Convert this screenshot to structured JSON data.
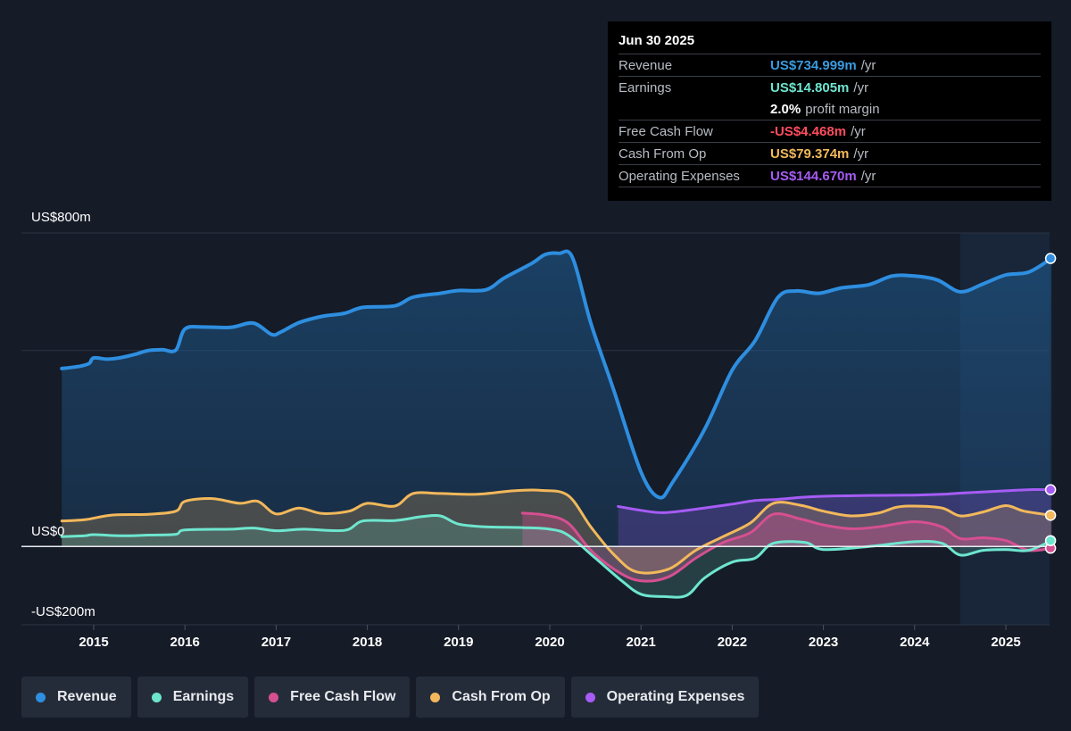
{
  "tooltip": {
    "date": "Jun 30 2025",
    "rows": [
      {
        "label": "Revenue",
        "value": "US$734.999m",
        "unit": "/yr",
        "color": "#3a9be0"
      },
      {
        "label": "Earnings",
        "value": "US$14.805m",
        "unit": "/yr",
        "color": "#6ee6cf"
      },
      {
        "label": "",
        "value": "2.0%",
        "unit": "profit margin",
        "color": "#ffffff"
      },
      {
        "label": "Free Cash Flow",
        "value": "-US$4.468m",
        "unit": "/yr",
        "color": "#ff4d5e"
      },
      {
        "label": "Cash From Op",
        "value": "US$79.374m",
        "unit": "/yr",
        "color": "#f2b85b"
      },
      {
        "label": "Operating Expenses",
        "value": "US$144.670m",
        "unit": "/yr",
        "color": "#a65cf5"
      }
    ]
  },
  "legend": [
    {
      "label": "Revenue",
      "color": "#2e8ee0"
    },
    {
      "label": "Earnings",
      "color": "#6ee6cf"
    },
    {
      "label": "Free Cash Flow",
      "color": "#d64f91"
    },
    {
      "label": "Cash From Op",
      "color": "#f2b85b"
    },
    {
      "label": "Operating Expenses",
      "color": "#a65cf5"
    }
  ],
  "chart_data": {
    "type": "line",
    "ylim": [
      -200,
      800
    ],
    "y_tick_labels": [
      {
        "label": "US$800m",
        "value": 800
      },
      {
        "label": "US$0",
        "value": 0
      },
      {
        "label": "-US$200m",
        "value": -200
      }
    ],
    "x_tick_labels": [
      "2015",
      "2016",
      "2017",
      "2018",
      "2019",
      "2020",
      "2021",
      "2022",
      "2023",
      "2024",
      "2025"
    ],
    "x_ticks": [
      2015,
      2016,
      2017,
      2018,
      2019,
      2020,
      2021,
      2022,
      2023,
      2024,
      2025
    ],
    "xlim": [
      2014.2,
      2025.5
    ],
    "forecast_shade_start": 2024.5,
    "series": [
      {
        "name": "Revenue",
        "color": "#2e8ee0",
        "fill": true,
        "points": [
          [
            2014.65,
            454
          ],
          [
            2014.85,
            460
          ],
          [
            2014.95,
            467
          ],
          [
            2015.0,
            481
          ],
          [
            2015.15,
            478
          ],
          [
            2015.3,
            482
          ],
          [
            2015.45,
            490
          ],
          [
            2015.6,
            500
          ],
          [
            2015.75,
            502
          ],
          [
            2015.9,
            501
          ],
          [
            2016.0,
            555
          ],
          [
            2016.2,
            560
          ],
          [
            2016.5,
            559
          ],
          [
            2016.75,
            570
          ],
          [
            2016.95,
            541
          ],
          [
            2017.05,
            547
          ],
          [
            2017.25,
            571
          ],
          [
            2017.5,
            587
          ],
          [
            2017.75,
            595
          ],
          [
            2017.95,
            610
          ],
          [
            2018.3,
            614
          ],
          [
            2018.5,
            636
          ],
          [
            2018.8,
            646
          ],
          [
            2019.0,
            653
          ],
          [
            2019.3,
            655
          ],
          [
            2019.5,
            685
          ],
          [
            2019.8,
            722
          ],
          [
            2019.95,
            745
          ],
          [
            2020.1,
            748
          ],
          [
            2020.25,
            737
          ],
          [
            2020.45,
            570
          ],
          [
            2020.7,
            400
          ],
          [
            2021.0,
            190
          ],
          [
            2021.2,
            125
          ],
          [
            2021.35,
            165
          ],
          [
            2021.7,
            300
          ],
          [
            2022.0,
            450
          ],
          [
            2022.25,
            525
          ],
          [
            2022.5,
            635
          ],
          [
            2022.7,
            652
          ],
          [
            2022.95,
            646
          ],
          [
            2023.2,
            660
          ],
          [
            2023.5,
            668
          ],
          [
            2023.75,
            690
          ],
          [
            2024.0,
            690
          ],
          [
            2024.25,
            680
          ],
          [
            2024.5,
            650
          ],
          [
            2024.75,
            670
          ],
          [
            2025.0,
            693
          ],
          [
            2025.25,
            700
          ],
          [
            2025.5,
            735
          ]
        ]
      },
      {
        "name": "Earnings",
        "color": "#6ee6cf",
        "fill": true,
        "points": [
          [
            2014.65,
            25
          ],
          [
            2014.9,
            27
          ],
          [
            2015.0,
            30
          ],
          [
            2015.3,
            27
          ],
          [
            2015.6,
            29
          ],
          [
            2015.9,
            31
          ],
          [
            2016.0,
            42
          ],
          [
            2016.5,
            44
          ],
          [
            2016.75,
            47
          ],
          [
            2017.0,
            40
          ],
          [
            2017.3,
            44
          ],
          [
            2017.75,
            41
          ],
          [
            2017.95,
            65
          ],
          [
            2018.3,
            66
          ],
          [
            2018.6,
            76
          ],
          [
            2018.8,
            78
          ],
          [
            2019.0,
            57
          ],
          [
            2019.3,
            50
          ],
          [
            2019.7,
            48
          ],
          [
            2020.0,
            44
          ],
          [
            2020.2,
            29
          ],
          [
            2020.5,
            -30
          ],
          [
            2020.8,
            -90
          ],
          [
            2021.0,
            -122
          ],
          [
            2021.25,
            -128
          ],
          [
            2021.5,
            -125
          ],
          [
            2021.7,
            -80
          ],
          [
            2022.0,
            -40
          ],
          [
            2022.25,
            -30
          ],
          [
            2022.45,
            8
          ],
          [
            2022.8,
            10
          ],
          [
            2023.0,
            -8
          ],
          [
            2023.5,
            0
          ],
          [
            2024.0,
            12
          ],
          [
            2024.3,
            8
          ],
          [
            2024.5,
            -22
          ],
          [
            2024.75,
            -10
          ],
          [
            2025.0,
            -8
          ],
          [
            2025.25,
            -10
          ],
          [
            2025.5,
            14.8
          ]
        ]
      },
      {
        "name": "Free Cash Flow",
        "color": "#d64f91",
        "fill": true,
        "points": [
          [
            2019.7,
            85
          ],
          [
            2019.95,
            80
          ],
          [
            2020.2,
            60
          ],
          [
            2020.45,
            -10
          ],
          [
            2020.75,
            -65
          ],
          [
            2021.0,
            -88
          ],
          [
            2021.3,
            -78
          ],
          [
            2021.6,
            -30
          ],
          [
            2021.9,
            10
          ],
          [
            2022.2,
            35
          ],
          [
            2022.45,
            82
          ],
          [
            2022.75,
            70
          ],
          [
            2023.0,
            55
          ],
          [
            2023.3,
            45
          ],
          [
            2023.6,
            50
          ],
          [
            2024.0,
            63
          ],
          [
            2024.3,
            50
          ],
          [
            2024.5,
            20
          ],
          [
            2024.75,
            22
          ],
          [
            2025.0,
            15
          ],
          [
            2025.25,
            -10
          ],
          [
            2025.5,
            -4.5
          ]
        ]
      },
      {
        "name": "Cash From Op",
        "color": "#f2b85b",
        "fill": true,
        "points": [
          [
            2014.65,
            65
          ],
          [
            2014.9,
            68
          ],
          [
            2015.2,
            80
          ],
          [
            2015.6,
            82
          ],
          [
            2015.9,
            90
          ],
          [
            2016.0,
            115
          ],
          [
            2016.3,
            122
          ],
          [
            2016.6,
            110
          ],
          [
            2016.8,
            115
          ],
          [
            2017.0,
            83
          ],
          [
            2017.25,
            98
          ],
          [
            2017.5,
            84
          ],
          [
            2017.8,
            90
          ],
          [
            2018.0,
            110
          ],
          [
            2018.3,
            103
          ],
          [
            2018.5,
            135
          ],
          [
            2018.8,
            135
          ],
          [
            2019.2,
            133
          ],
          [
            2019.6,
            142
          ],
          [
            2019.9,
            143
          ],
          [
            2020.2,
            130
          ],
          [
            2020.45,
            50
          ],
          [
            2020.7,
            -20
          ],
          [
            2020.95,
            -65
          ],
          [
            2021.3,
            -58
          ],
          [
            2021.6,
            -10
          ],
          [
            2021.9,
            25
          ],
          [
            2022.2,
            60
          ],
          [
            2022.45,
            110
          ],
          [
            2022.75,
            105
          ],
          [
            2023.0,
            90
          ],
          [
            2023.3,
            78
          ],
          [
            2023.6,
            85
          ],
          [
            2023.8,
            100
          ],
          [
            2024.0,
            103
          ],
          [
            2024.3,
            98
          ],
          [
            2024.5,
            78
          ],
          [
            2024.75,
            88
          ],
          [
            2025.0,
            104
          ],
          [
            2025.2,
            90
          ],
          [
            2025.5,
            79.4
          ]
        ]
      },
      {
        "name": "Operating Expenses",
        "color": "#a65cf5",
        "fill": true,
        "points": [
          [
            2020.75,
            102
          ],
          [
            2021.0,
            92
          ],
          [
            2021.25,
            86
          ],
          [
            2021.6,
            95
          ],
          [
            2022.0,
            108
          ],
          [
            2022.25,
            117
          ],
          [
            2022.5,
            120
          ],
          [
            2022.75,
            125
          ],
          [
            2023.0,
            128
          ],
          [
            2023.5,
            130
          ],
          [
            2024.0,
            131
          ],
          [
            2024.3,
            133
          ],
          [
            2024.5,
            136
          ],
          [
            2025.0,
            142
          ],
          [
            2025.3,
            145
          ],
          [
            2025.5,
            144.7
          ]
        ]
      }
    ]
  }
}
